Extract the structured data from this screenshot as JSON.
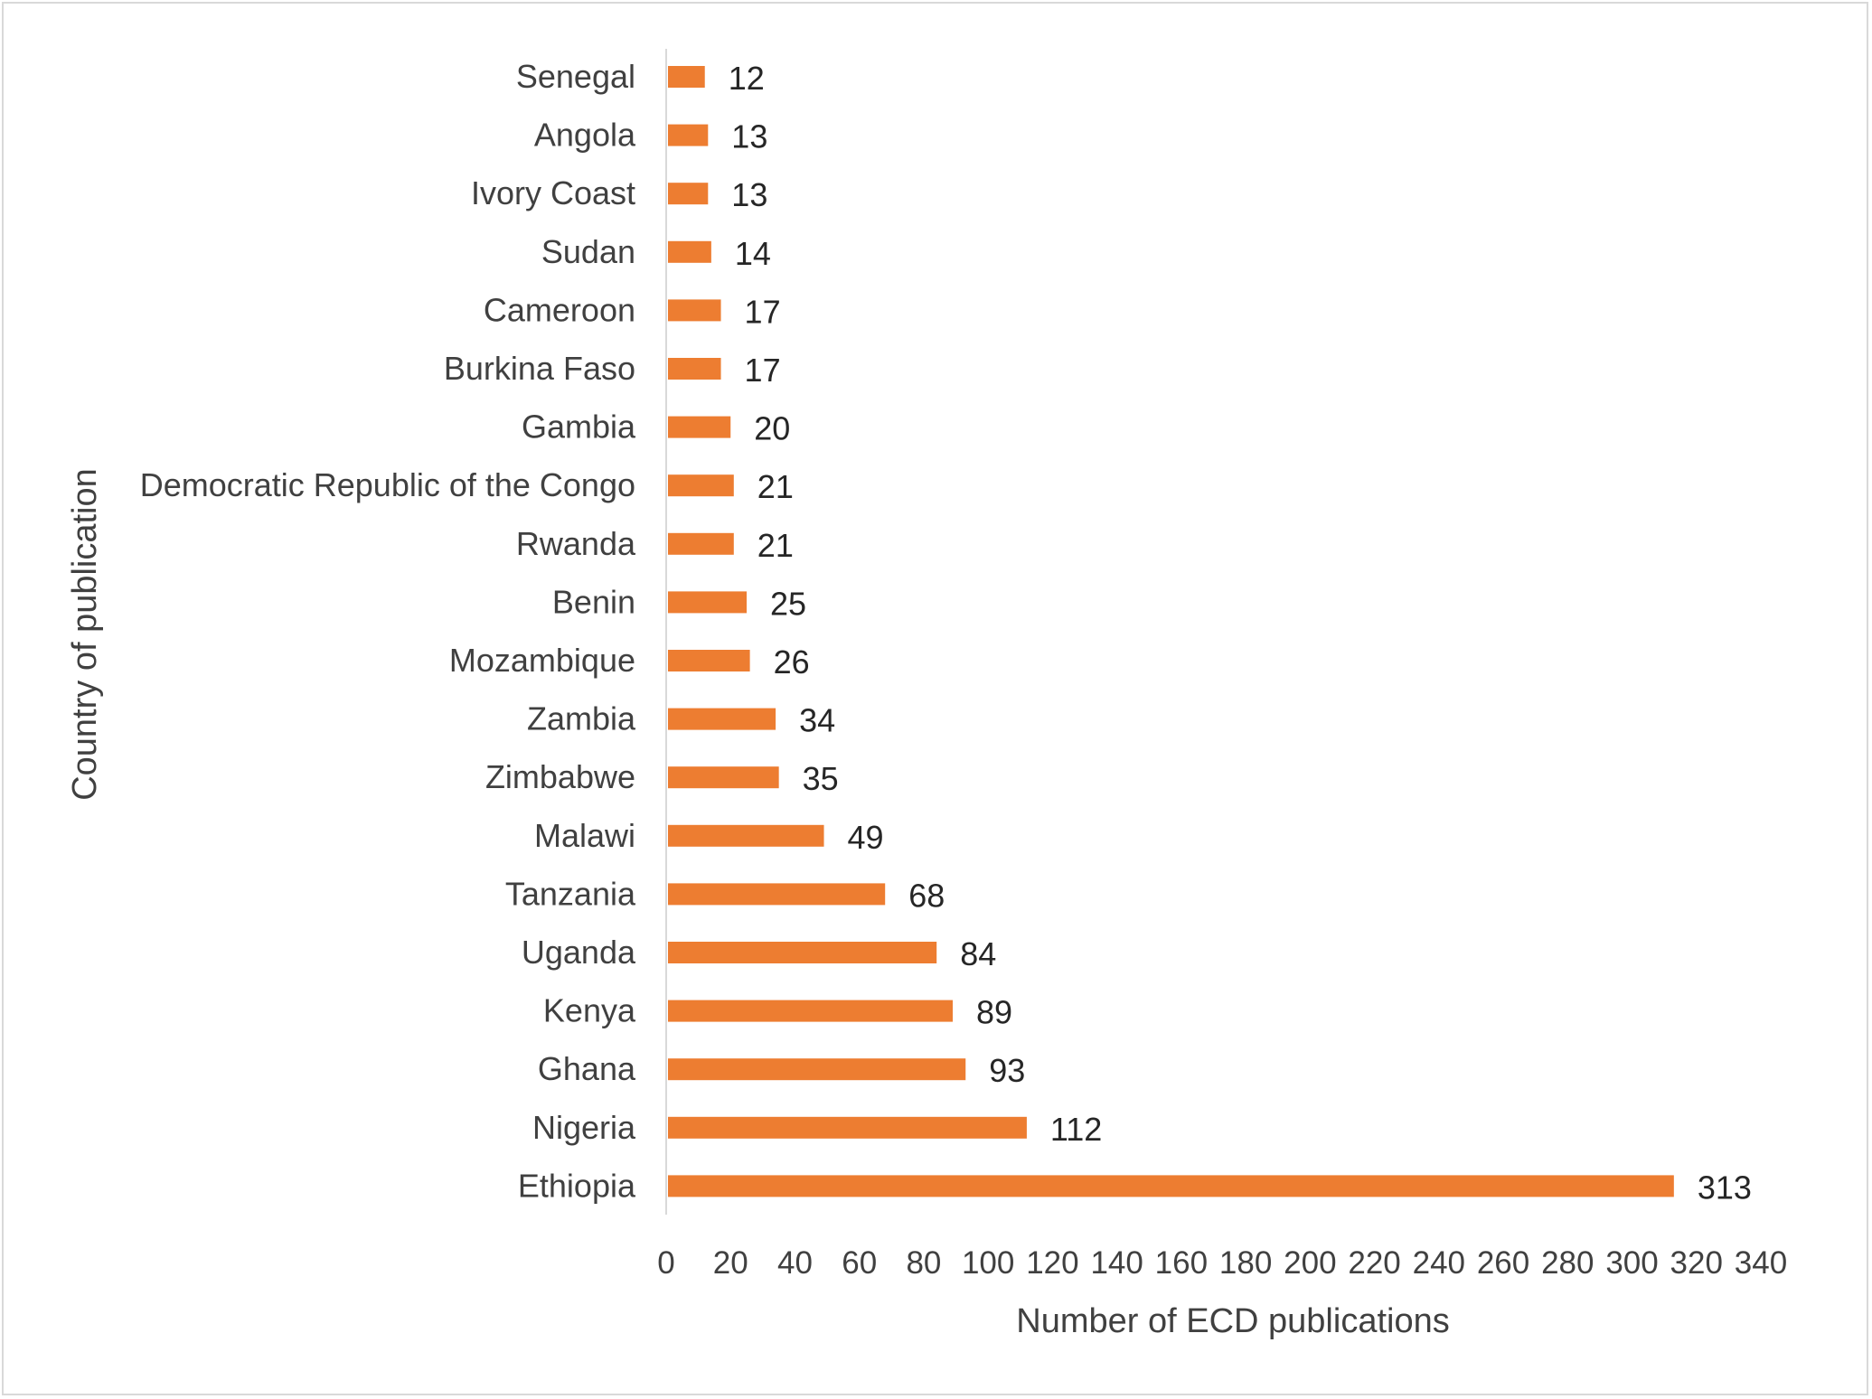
{
  "chart_data": {
    "type": "bar",
    "orientation": "horizontal",
    "categories": [
      "Senegal",
      "Angola",
      "Ivory Coast",
      "Sudan",
      "Cameroon",
      "Burkina Faso",
      "Gambia",
      "Democratic Republic of the Congo",
      "Rwanda",
      "Benin",
      "Mozambique",
      "Zambia",
      "Zimbabwe",
      "Malawi",
      "Tanzania",
      "Uganda",
      "Kenya",
      "Ghana",
      "Nigeria",
      "Ethiopia"
    ],
    "values": [
      12,
      13,
      13,
      14,
      17,
      17,
      20,
      21,
      21,
      25,
      26,
      34,
      35,
      49,
      68,
      84,
      89,
      93,
      112,
      313
    ],
    "data_labels": [
      "12",
      "13",
      "13",
      "14",
      "17",
      "17",
      "20",
      "21",
      "21",
      "25",
      "26",
      "34",
      "35",
      "49",
      "68",
      "84",
      "89",
      "93",
      "112",
      "313"
    ],
    "xlabel": "Number of ECD publications",
    "ylabel": "Country of publication",
    "xlim": [
      0,
      340
    ],
    "xticks": [
      0,
      20,
      40,
      60,
      80,
      100,
      120,
      140,
      160,
      180,
      200,
      220,
      240,
      260,
      280,
      300,
      320,
      340
    ],
    "xtick_labels": [
      "0",
      "20",
      "40",
      "60",
      "80",
      "100",
      "120",
      "140",
      "160",
      "180",
      "200",
      "220",
      "240",
      "260",
      "280",
      "300",
      "320",
      "340"
    ],
    "grid": false,
    "legend": "none",
    "bar_color": "#ED7D31",
    "axis_color": "#d9d9d9",
    "text_color": "#404040"
  }
}
